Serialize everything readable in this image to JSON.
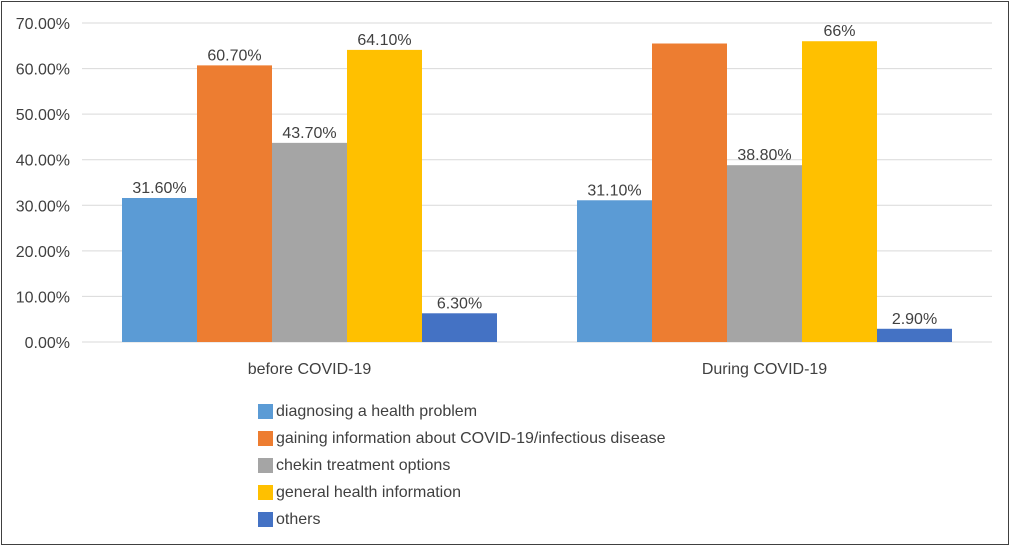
{
  "chart_data": {
    "type": "bar",
    "categories": [
      "before COVID-19",
      "During COVID-19"
    ],
    "series": [
      {
        "name": "diagnosing a health problem",
        "color": "#5b9bd5",
        "values": [
          31.6,
          31.1
        ],
        "labels": [
          "31.60%",
          "31.10%"
        ]
      },
      {
        "name": "gaining information about COVID-19/infectious disease",
        "color": "#ed7d31",
        "values": [
          60.7,
          65.5
        ],
        "labels": [
          "60.70%",
          ""
        ]
      },
      {
        "name": "chekin treatment options",
        "color": "#a5a5a5",
        "values": [
          43.7,
          38.8
        ],
        "labels": [
          "43.70%",
          "38.80%"
        ]
      },
      {
        "name": "general health information",
        "color": "#ffc000",
        "values": [
          64.1,
          66.0
        ],
        "labels": [
          "64.10%",
          "66%"
        ]
      },
      {
        "name": "others",
        "color": "#4472c4",
        "values": [
          6.3,
          2.9
        ],
        "labels": [
          "6.30%",
          "2.90%"
        ]
      }
    ],
    "y_ticks": [
      0,
      10,
      20,
      30,
      40,
      50,
      60,
      70
    ],
    "y_tick_labels": [
      "0.00%",
      "10.00%",
      "20.00%",
      "30.00%",
      "40.00%",
      "50.00%",
      "60.00%",
      "70.00%"
    ],
    "ylim": [
      0,
      70
    ],
    "grid": true,
    "legend_position": "bottom"
  }
}
